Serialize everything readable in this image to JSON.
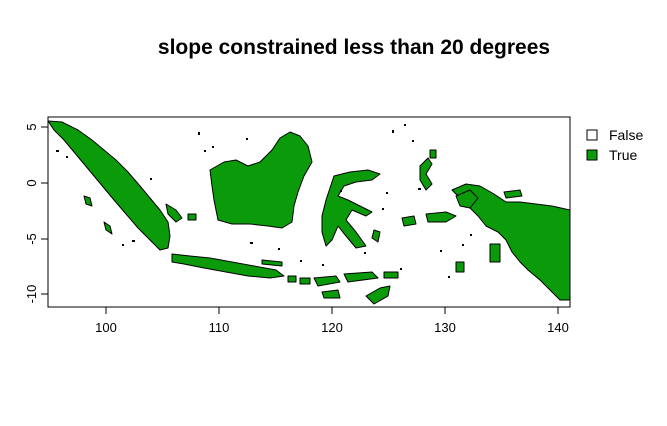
{
  "title": "slope constrained less than 20 degrees",
  "colors": {
    "true_fill": "#0a9a0a",
    "false_fill": "#ffffff",
    "frame": "#000000"
  },
  "axes": {
    "x": {
      "ticks": [
        "100",
        "110",
        "120",
        "130",
        "140"
      ],
      "range": [
        95,
        141
      ]
    },
    "y": {
      "ticks": [
        "5",
        "0",
        "-5",
        "-10"
      ],
      "range": [
        -11,
        6
      ]
    }
  },
  "legend": {
    "items": [
      {
        "label": "False",
        "color": "#ffffff"
      },
      {
        "label": "True",
        "color": "#0a9a0a"
      }
    ]
  },
  "map_regions": [
    "sumatra",
    "java",
    "borneo",
    "sulawesi",
    "new-guinea",
    "timor",
    "flores",
    "halmahera",
    "seram"
  ]
}
